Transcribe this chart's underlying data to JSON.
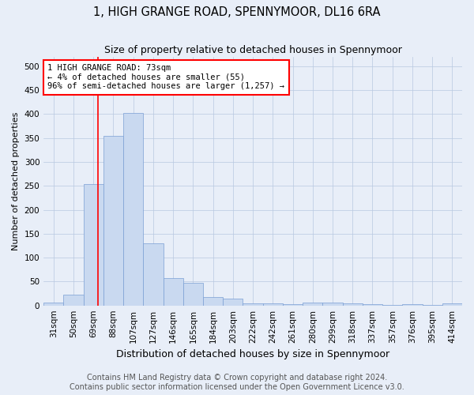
{
  "title": "1, HIGH GRANGE ROAD, SPENNYMOOR, DL16 6RA",
  "subtitle": "Size of property relative to detached houses in Spennymoor",
  "xlabel": "Distribution of detached houses by size in Spennymoor",
  "ylabel": "Number of detached properties",
  "categories": [
    "31sqm",
    "50sqm",
    "69sqm",
    "88sqm",
    "107sqm",
    "127sqm",
    "146sqm",
    "165sqm",
    "184sqm",
    "203sqm",
    "222sqm",
    "242sqm",
    "261sqm",
    "280sqm",
    "299sqm",
    "318sqm",
    "337sqm",
    "357sqm",
    "376sqm",
    "395sqm",
    "414sqm"
  ],
  "values": [
    6,
    23,
    253,
    355,
    403,
    130,
    58,
    48,
    18,
    14,
    5,
    4,
    3,
    6,
    6,
    4,
    2,
    1,
    2,
    1,
    4
  ],
  "bar_color": "#c9d9f0",
  "bar_edge_color": "#7a9fd4",
  "annotation_line1": "1 HIGH GRANGE ROAD: 73sqm",
  "annotation_line2": "← 4% of detached houses are smaller (55)",
  "annotation_line3": "96% of semi-detached houses are larger (1,257) →",
  "annotation_box_color": "white",
  "annotation_box_edge": "red",
  "ylim": [
    0,
    520
  ],
  "yticks": [
    0,
    50,
    100,
    150,
    200,
    250,
    300,
    350,
    400,
    450,
    500
  ],
  "footnote1": "Contains HM Land Registry data © Crown copyright and database right 2024.",
  "footnote2": "Contains public sector information licensed under the Open Government Licence v3.0.",
  "bg_color": "#e8eef8",
  "title_fontsize": 10.5,
  "subtitle_fontsize": 9,
  "xlabel_fontsize": 9,
  "ylabel_fontsize": 8,
  "tick_fontsize": 7.5,
  "annotation_fontsize": 7.5,
  "footnote_fontsize": 7
}
